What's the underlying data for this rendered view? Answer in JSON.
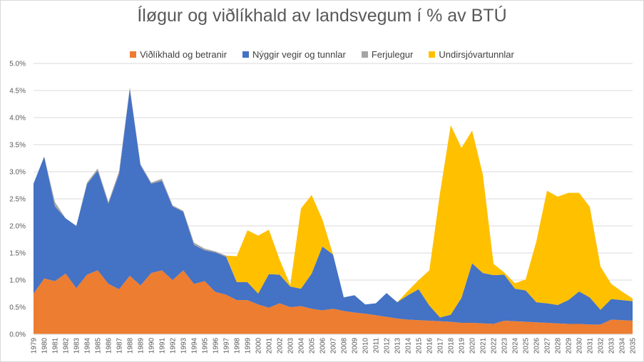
{
  "chart_data": {
    "type": "area",
    "stacked": true,
    "title": "Íløgur og viðlíkhald av landsvegum í % av BTÚ",
    "categories": [
      "1979",
      "1980",
      "1981",
      "1982",
      "1983",
      "1984",
      "1985",
      "1986",
      "1987",
      "1988",
      "1989",
      "1990",
      "1991",
      "1992",
      "1993",
      "1994",
      "1995",
      "1996",
      "1997",
      "1998",
      "1999",
      "2000",
      "2001",
      "2002",
      "2003",
      "2004",
      "2005",
      "2006",
      "2007",
      "2008",
      "2009",
      "2010",
      "2011",
      "2012",
      "2013",
      "2014",
      "2015",
      "2016",
      "2017",
      "2018",
      "2019",
      "2020",
      "2021",
      "2022",
      "2023",
      "2024",
      "2025",
      "2026",
      "2027",
      "2028",
      "2029",
      "2030",
      "2031",
      "2032",
      "2033",
      "2034",
      "2035"
    ],
    "series": [
      {
        "name": "Viðlíkhald og betranir",
        "color": "#ED7D31",
        "values": [
          0.75,
          1.03,
          0.98,
          1.12,
          0.85,
          1.1,
          1.18,
          0.93,
          0.83,
          1.08,
          0.9,
          1.13,
          1.18,
          1.0,
          1.18,
          0.93,
          0.98,
          0.78,
          0.73,
          0.63,
          0.63,
          0.55,
          0.49,
          0.57,
          0.5,
          0.52,
          0.47,
          0.44,
          0.47,
          0.43,
          0.4,
          0.38,
          0.35,
          0.32,
          0.29,
          0.27,
          0.26,
          0.25,
          0.24,
          0.23,
          0.21,
          0.21,
          0.2,
          0.19,
          0.25,
          0.24,
          0.23,
          0.22,
          0.21,
          0.2,
          0.19,
          0.19,
          0.18,
          0.18,
          0.27,
          0.26,
          0.25
        ]
      },
      {
        "name": "Nýggir vegir og tunnlar",
        "color": "#4472C4",
        "values": [
          2.03,
          2.25,
          1.38,
          1.02,
          1.15,
          1.67,
          1.84,
          1.48,
          2.13,
          3.45,
          2.22,
          1.65,
          1.65,
          1.36,
          1.08,
          0.72,
          0.57,
          0.73,
          0.7,
          0.33,
          0.33,
          0.2,
          0.62,
          0.53,
          0.38,
          0.32,
          0.65,
          1.18,
          1.0,
          0.25,
          0.32,
          0.17,
          0.22,
          0.44,
          0.3,
          0.45,
          0.57,
          0.28,
          0.07,
          0.13,
          0.46,
          1.1,
          0.93,
          0.9,
          0.85,
          0.6,
          0.58,
          0.37,
          0.36,
          0.34,
          0.44,
          0.6,
          0.5,
          0.27,
          0.38,
          0.37,
          0.36
        ]
      },
      {
        "name": "Ferjulegur",
        "color": "#A5A5A5",
        "values": [
          0,
          0,
          0.08,
          0,
          0,
          0.03,
          0.04,
          0.03,
          0.05,
          0.03,
          0.02,
          0.02,
          0.04,
          0.02,
          0.02,
          0.04,
          0.03,
          0.02,
          0.02,
          0,
          0,
          0,
          0,
          0,
          0,
          0,
          0,
          0,
          0,
          0,
          0,
          0,
          0,
          0,
          0,
          0,
          0,
          0,
          0,
          0,
          0,
          0,
          0,
          0,
          0,
          0,
          0,
          0,
          0,
          0,
          0,
          0,
          0,
          0,
          0,
          0,
          0
        ]
      },
      {
        "name": "Undirsjóvartunnlar",
        "color": "#FFC000",
        "values": [
          0,
          0,
          0,
          0,
          0,
          0,
          0,
          0,
          0,
          0,
          0,
          0,
          0,
          0,
          0,
          0,
          0,
          0,
          0,
          0.48,
          0.96,
          1.07,
          0.82,
          0.28,
          0.03,
          1.48,
          1.45,
          0.5,
          0,
          0,
          0,
          0,
          0,
          0,
          0,
          0.08,
          0.17,
          0.65,
          2.3,
          3.5,
          2.77,
          2.45,
          1.82,
          0.21,
          0.04,
          0.1,
          0.2,
          1.12,
          2.08,
          2.0,
          1.98,
          1.82,
          1.67,
          0.8,
          0.28,
          0.16,
          0.05
        ]
      }
    ],
    "ylim": [
      0,
      5.0
    ],
    "yticks": [
      "0.0%",
      "0.5%",
      "1.0%",
      "1.5%",
      "2.0%",
      "2.5%",
      "3.0%",
      "3.5%",
      "4.0%",
      "4.5%",
      "5.0%"
    ],
    "grid": true,
    "legend_position": "top"
  }
}
